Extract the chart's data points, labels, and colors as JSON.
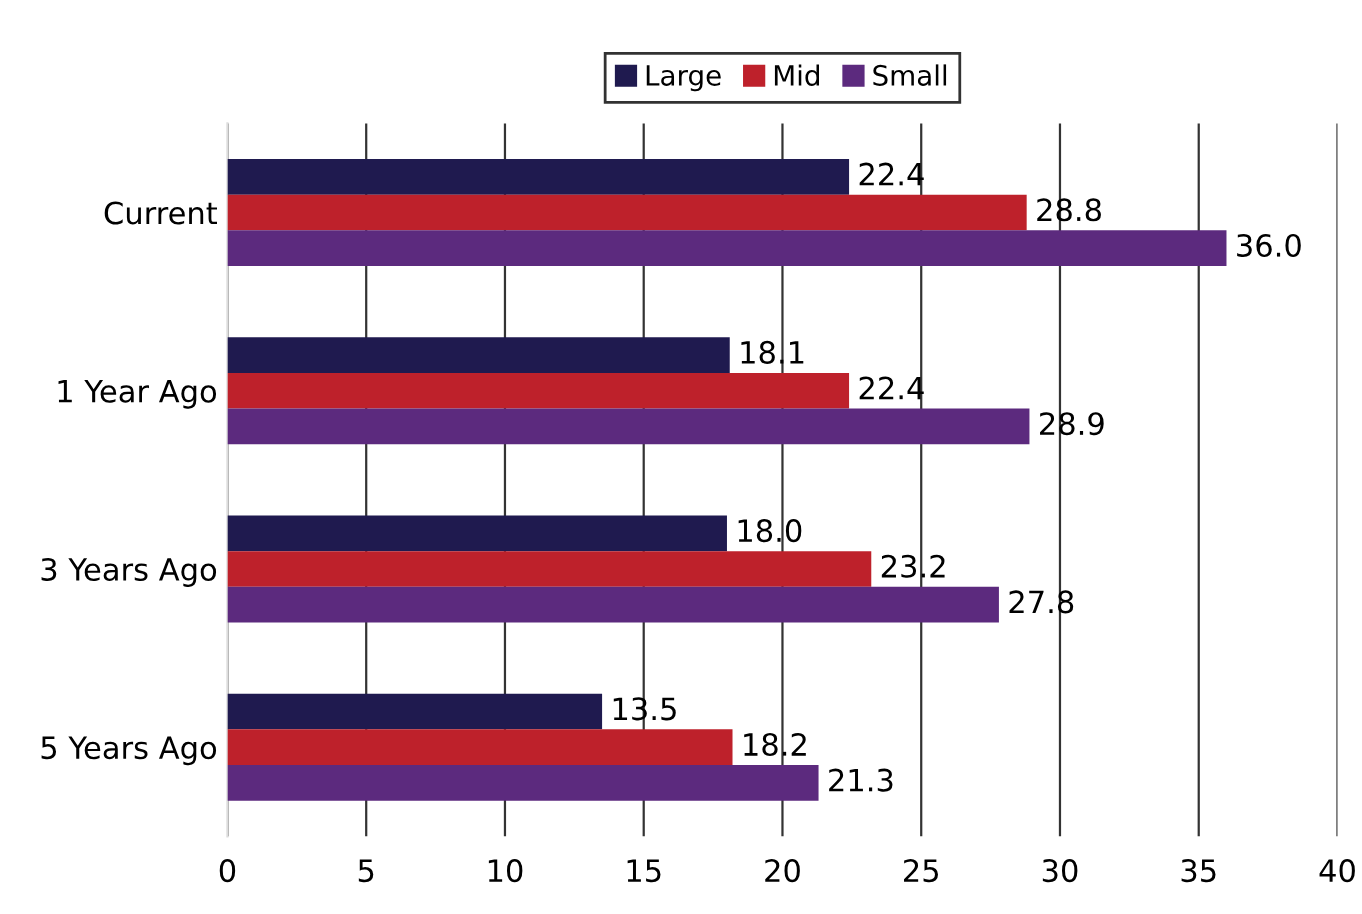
{
  "chart_data": {
    "type": "bar",
    "orientation": "horizontal",
    "categories": [
      "Current",
      "1 Year Ago",
      "3 Years Ago",
      "5 Years Ago"
    ],
    "series": [
      {
        "name": "Large",
        "color": "#1f1a4f",
        "values": [
          22.4,
          18.1,
          18.0,
          13.5
        ]
      },
      {
        "name": "Mid",
        "color": "#be212b",
        "values": [
          28.8,
          22.4,
          23.2,
          18.2
        ]
      },
      {
        "name": "Small",
        "color": "#5c2a7e",
        "values": [
          36.0,
          28.9,
          27.8,
          21.3
        ]
      }
    ],
    "value_labels": [
      [
        "22.4",
        "18.1",
        "18.0",
        "13.5"
      ],
      [
        "28.8",
        "22.4",
        "23.2",
        "18.2"
      ],
      [
        "36.0",
        "28.9",
        "27.8",
        "21.3"
      ]
    ],
    "xlim": [
      0,
      40
    ],
    "xticks": [
      0,
      5,
      10,
      15,
      20,
      25,
      30,
      35,
      40
    ],
    "grid": "x",
    "legend": "top"
  }
}
